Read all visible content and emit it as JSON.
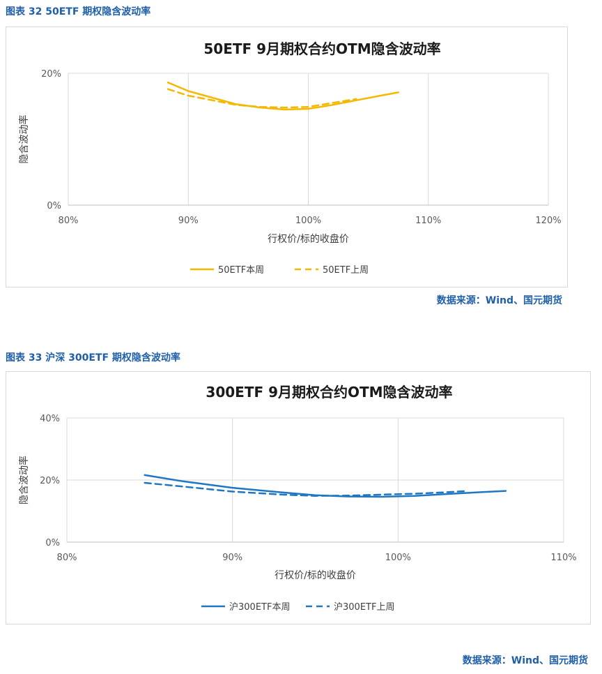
{
  "figures": [
    {
      "heading": "图表 32  50ETF 期权隐含波动率",
      "source": "数据来源：Wind、国元期货"
    },
    {
      "heading": "图表 33  沪深 300ETF 期权隐含波动率",
      "source": "数据来源：Wind、国元期货"
    }
  ],
  "chart_data": [
    {
      "type": "line",
      "title": "50ETF  9月期权合约OTM隐含波动率",
      "xlabel": "行权价/标的收盘价",
      "ylabel": "隐含波动率",
      "xlim": [
        80,
        120
      ],
      "ylim": [
        0,
        20
      ],
      "x_ticks": [
        "80%",
        "90%",
        "100%",
        "110%",
        "120%"
      ],
      "y_ticks": [
        "0%",
        "20%"
      ],
      "y_tick_values": [
        0,
        20
      ],
      "x_tick_values": [
        80,
        90,
        100,
        110,
        120
      ],
      "legend": "bottom",
      "grid": "vertical",
      "series": [
        {
          "name": "50ETF本周",
          "color": "#f5b800",
          "dash": false,
          "x": [
            88.3,
            90,
            92,
            94,
            96,
            98,
            100,
            102,
            104,
            106,
            107.5
          ],
          "y": [
            18.6,
            17.3,
            16.3,
            15.3,
            14.8,
            14.5,
            14.6,
            15.2,
            15.9,
            16.6,
            17.1
          ]
        },
        {
          "name": "50ETF上周",
          "color": "#f5b800",
          "dash": true,
          "x": [
            88.3,
            90,
            92,
            94,
            96,
            98,
            100,
            102,
            104
          ],
          "y": [
            17.6,
            16.6,
            15.9,
            15.2,
            14.9,
            14.8,
            14.9,
            15.5,
            16.1
          ]
        }
      ]
    },
    {
      "type": "line",
      "title": "300ETF  9月期权合约OTM隐含波动率",
      "xlabel": "行权价/标的收盘价",
      "ylabel": "隐含波动率",
      "xlim": [
        80,
        110
      ],
      "ylim": [
        0,
        40
      ],
      "x_ticks": [
        "80%",
        "90%",
        "100%",
        "110%"
      ],
      "y_ticks": [
        "0%",
        "20%",
        "40%"
      ],
      "y_tick_values": [
        0,
        20,
        40
      ],
      "x_tick_values": [
        80,
        90,
        100,
        110
      ],
      "legend": "bottom",
      "grid": "both",
      "series": [
        {
          "name": "沪300ETF本周",
          "color": "#1f77c4",
          "dash": false,
          "x": [
            84.7,
            87,
            90,
            93,
            95,
            97,
            99,
            101,
            103,
            105,
            106.5
          ],
          "y": [
            21.6,
            19.6,
            17.5,
            16.0,
            15.1,
            14.7,
            14.6,
            14.9,
            15.5,
            16.1,
            16.5
          ]
        },
        {
          "name": "沪300ETF上周",
          "color": "#1f77c4",
          "dash": true,
          "x": [
            84.7,
            87,
            90,
            93,
            95,
            97,
            99,
            101,
            103,
            104.2
          ],
          "y": [
            19.1,
            17.9,
            16.3,
            15.3,
            14.9,
            15.0,
            15.3,
            15.6,
            16.1,
            16.5
          ]
        }
      ]
    }
  ]
}
